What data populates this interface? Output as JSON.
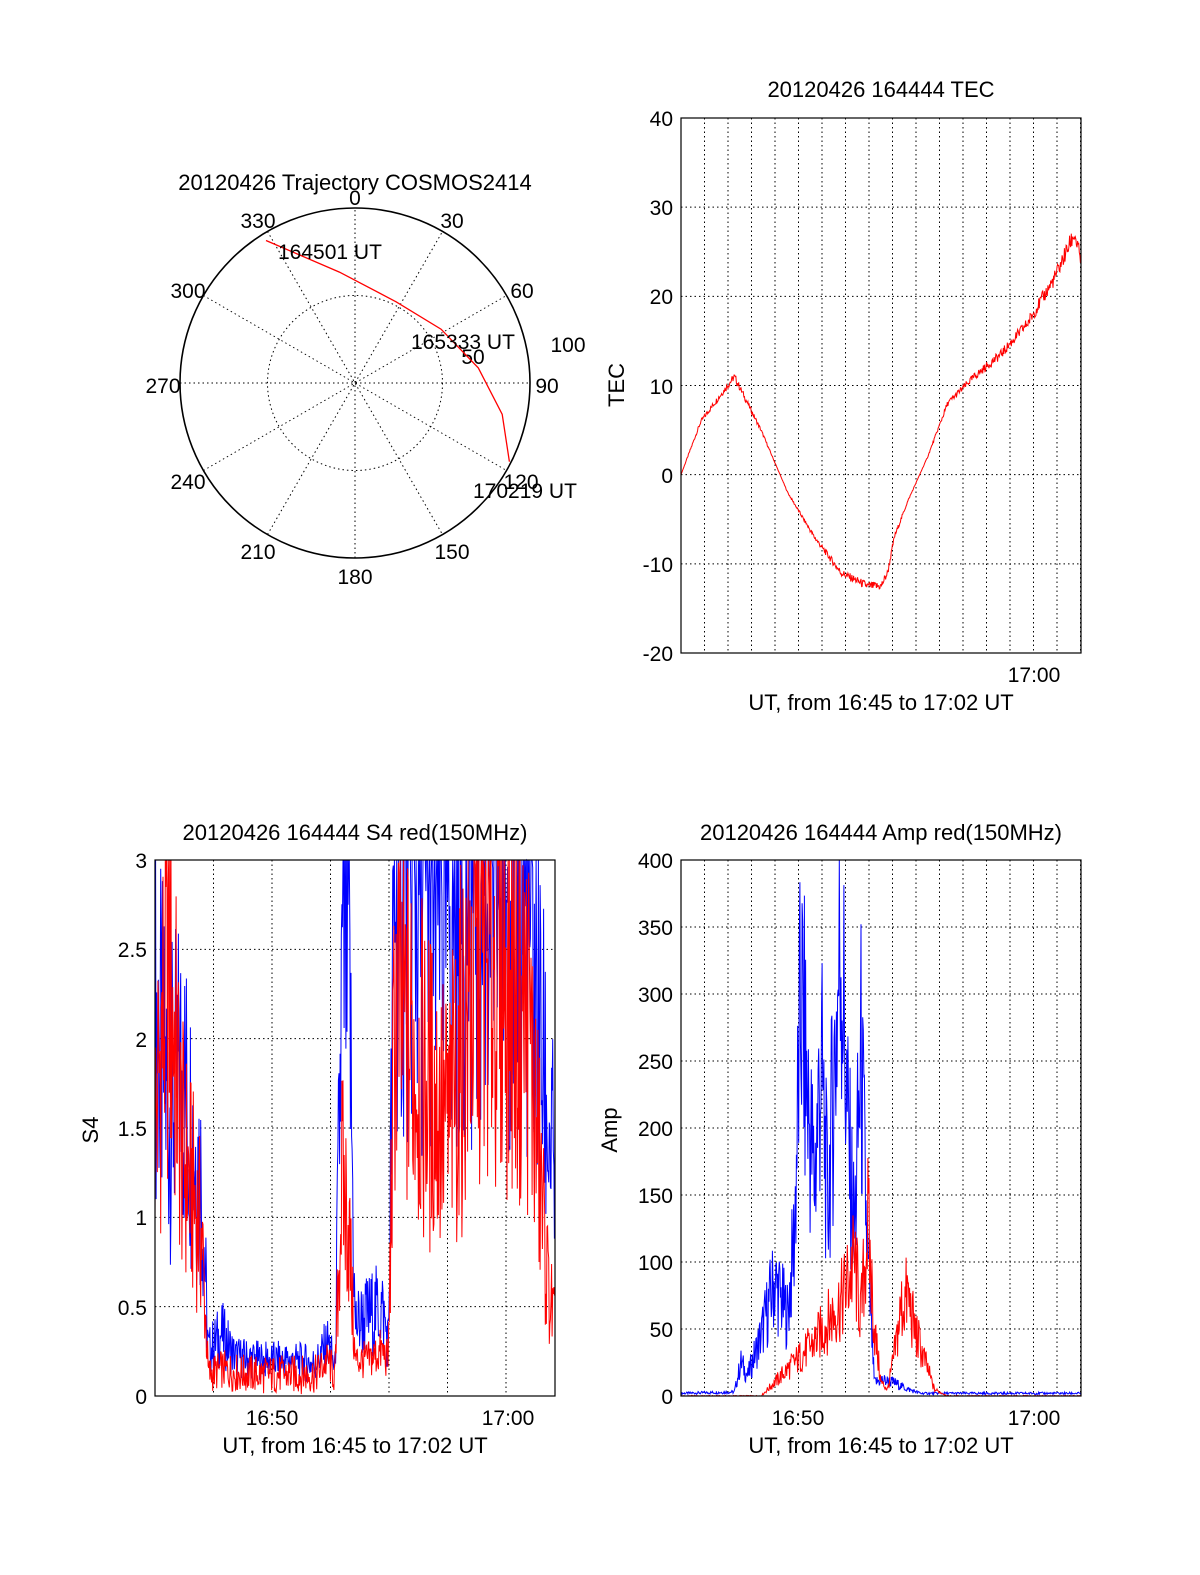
{
  "chart_data": [
    {
      "type": "polar",
      "title": "20120426 Trajectory COSMOS2414",
      "angle_labels": [
        "0",
        "30",
        "60",
        "90",
        "120",
        "150",
        "180",
        "210",
        "240",
        "270",
        "300",
        "330"
      ],
      "ring_labels": [
        "50",
        "100"
      ],
      "rlim": [
        0,
        100
      ],
      "trajectory": [
        {
          "az": 328,
          "r": 96
        },
        {
          "az": 352,
          "r": 64
        },
        {
          "az": 27,
          "r": 52
        },
        {
          "az": 58,
          "r": 58
        },
        {
          "az": 83,
          "r": 71
        },
        {
          "az": 102,
          "r": 86
        },
        {
          "az": 117,
          "r": 99
        }
      ],
      "annotations": [
        "164501 UT",
        "165333 UT",
        "170219 UT"
      ],
      "color": "#ff0000"
    },
    {
      "type": "line",
      "title": "20120426 164444 TEC",
      "ylabel": "TEC",
      "xlabel": "UT, from 16:45 to 17:02 UT",
      "xlim": [
        16.74,
        17.04
      ],
      "ylim": [
        -20,
        40
      ],
      "yticks": [
        "-20",
        "-10",
        "0",
        "10",
        "20",
        "30",
        "40"
      ],
      "xticks": [
        "17:00"
      ],
      "grid": true,
      "series": [
        {
          "name": "TEC",
          "color": "#ff0000",
          "x": [
            16.74,
            16.755,
            16.77,
            16.78,
            16.8,
            16.82,
            16.84,
            16.86,
            16.88,
            16.89,
            16.895,
            16.9,
            16.91,
            16.925,
            16.94,
            16.96,
            16.98,
            17.0,
            17.02,
            17.035,
            17.04
          ],
          "y": [
            0,
            6,
            9,
            11,
            5,
            -2,
            -7,
            -11,
            -12.5,
            -12.5,
            -11,
            -7,
            -3,
            2,
            8,
            11,
            13.5,
            17,
            22,
            27,
            24
          ]
        }
      ]
    },
    {
      "type": "line",
      "title": "20120426 164444 S4 red(150MHz)",
      "ylabel": "S4",
      "xlabel": "UT, from 16:45 to 17:02 UT",
      "xlim": [
        16.74,
        17.04
      ],
      "ylim": [
        0,
        3
      ],
      "yticks": [
        "0",
        "0.5",
        "1",
        "1.5",
        "2",
        "2.5",
        "3"
      ],
      "xticks": [
        "16:50",
        "17:00"
      ],
      "grid": true,
      "series": [
        {
          "name": "S4 blue",
          "color": "#0000ff",
          "x": [
            16.74,
            16.75,
            16.76,
            16.775,
            16.78,
            16.79,
            16.8,
            16.82,
            16.84,
            16.86,
            16.87,
            16.875,
            16.88,
            16.885,
            16.89,
            16.9,
            16.91,
            16.915,
            16.92,
            16.94,
            16.96,
            16.98,
            17.0,
            17.02,
            17.035,
            17.04
          ],
          "y": [
            2.2,
            1.6,
            1.8,
            1.2,
            0.25,
            0.35,
            0.22,
            0.2,
            0.2,
            0.18,
            0.3,
            0.15,
            2.2,
            2.6,
            0.4,
            0.45,
            0.5,
            0.3,
            3,
            2.9,
            2.8,
            3,
            2.9,
            2.7,
            1.5,
            1.2
          ]
        },
        {
          "name": "S4 red",
          "color": "#ff0000",
          "x": [
            16.74,
            16.75,
            16.76,
            16.775,
            16.78,
            16.79,
            16.8,
            16.82,
            16.84,
            16.86,
            16.87,
            16.875,
            16.88,
            16.885,
            16.89,
            16.9,
            16.91,
            16.915,
            16.92,
            16.94,
            16.96,
            16.98,
            17.0,
            17.02,
            17.035,
            17.04
          ],
          "y": [
            1.5,
            2.5,
            1.4,
            0.9,
            0.12,
            0.15,
            0.13,
            0.12,
            0.12,
            0.12,
            0.2,
            0.1,
            1.2,
            1.0,
            0.2,
            0.2,
            0.25,
            0.2,
            2.2,
            1.8,
            1.5,
            2.4,
            2.5,
            2.1,
            0.6,
            0.4
          ]
        }
      ]
    },
    {
      "type": "line",
      "title": "20120426 164444 Amp red(150MHz)",
      "ylabel": "Amp",
      "xlabel": "UT, from 16:45 to 17:02 UT",
      "xlim": [
        16.74,
        17.04
      ],
      "ylim": [
        0,
        400
      ],
      "yticks": [
        "0",
        "50",
        "100",
        "150",
        "200",
        "250",
        "300",
        "350",
        "400"
      ],
      "xticks": [
        "16:50",
        "17:00"
      ],
      "grid": true,
      "series": [
        {
          "name": "Amp blue",
          "color": "#0000ff",
          "x": [
            16.74,
            16.78,
            16.785,
            16.79,
            16.8,
            16.81,
            16.82,
            16.825,
            16.83,
            16.835,
            16.84,
            16.845,
            16.85,
            16.86,
            16.865,
            16.87,
            16.875,
            16.88,
            16.885,
            16.89,
            16.9,
            16.91,
            16.92,
            16.93,
            17.04
          ],
          "y": [
            2,
            3,
            25,
            15,
            45,
            85,
            60,
            120,
            300,
            220,
            160,
            250,
            140,
            350,
            200,
            120,
            250,
            100,
            10,
            12,
            10,
            5,
            2,
            2,
            2
          ]
        },
        {
          "name": "Amp red",
          "color": "#ff0000",
          "x": [
            16.74,
            16.8,
            16.81,
            16.82,
            16.83,
            16.84,
            16.85,
            16.86,
            16.87,
            16.875,
            16.88,
            16.885,
            16.89,
            16.895,
            16.9,
            16.905,
            16.91,
            16.915,
            16.92,
            16.925,
            16.93,
            16.94,
            17.04
          ],
          "y": [
            0,
            0,
            10,
            20,
            30,
            40,
            55,
            70,
            100,
            60,
            130,
            50,
            10,
            5,
            30,
            65,
            75,
            50,
            35,
            20,
            5,
            0,
            0
          ]
        }
      ]
    }
  ]
}
